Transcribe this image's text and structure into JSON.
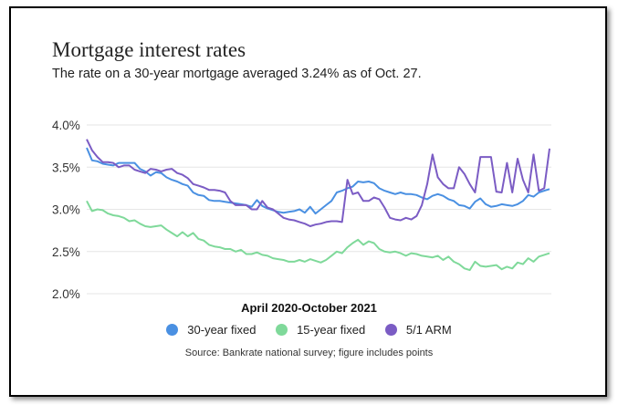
{
  "chart_data": {
    "type": "line",
    "title": "Mortgage interest rates",
    "subtitle": "The rate on a 30-year mortgage averaged 3.24% as of Oct. 27.",
    "xlabel": "April 2020-October 2021",
    "ylabel": "",
    "ylim": [
      2.0,
      4.0
    ],
    "yticks": [
      "4.0%",
      "3.5%",
      "3.0%",
      "2.5%",
      "2.0%"
    ],
    "ytick_values": [
      4.0,
      3.5,
      3.0,
      2.5,
      2.0
    ],
    "grid": true,
    "legend_position": "bottom",
    "source": "Source: Bankrate national survey; figure includes points",
    "series": [
      {
        "name": "30-year fixed",
        "color": "#4a90e2",
        "values": [
          3.73,
          3.58,
          3.57,
          3.54,
          3.53,
          3.52,
          3.55,
          3.55,
          3.55,
          3.55,
          3.48,
          3.45,
          3.4,
          3.44,
          3.43,
          3.38,
          3.35,
          3.33,
          3.3,
          3.28,
          3.2,
          3.17,
          3.16,
          3.11,
          3.1,
          3.1,
          3.09,
          3.08,
          3.07,
          3.06,
          3.05,
          3.03,
          3.11,
          3.04,
          3.01,
          2.99,
          2.97,
          2.96,
          2.97,
          2.98,
          3.0,
          2.96,
          3.03,
          2.95,
          3.0,
          3.05,
          3.1,
          3.2,
          3.22,
          3.25,
          3.27,
          3.33,
          3.32,
          3.33,
          3.31,
          3.25,
          3.22,
          3.2,
          3.18,
          3.2,
          3.18,
          3.18,
          3.17,
          3.14,
          3.12,
          3.16,
          3.18,
          3.16,
          3.12,
          3.1,
          3.05,
          3.04,
          3.01,
          3.09,
          3.13,
          3.06,
          3.03,
          3.04,
          3.06,
          3.05,
          3.04,
          3.06,
          3.1,
          3.17,
          3.15,
          3.2,
          3.22,
          3.24
        ]
      },
      {
        "name": "15-year fixed",
        "color": "#7fd99a",
        "values": [
          3.1,
          2.98,
          3.0,
          2.99,
          2.95,
          2.93,
          2.92,
          2.9,
          2.86,
          2.87,
          2.83,
          2.8,
          2.79,
          2.8,
          2.81,
          2.76,
          2.72,
          2.68,
          2.73,
          2.68,
          2.72,
          2.65,
          2.63,
          2.58,
          2.56,
          2.55,
          2.53,
          2.53,
          2.5,
          2.52,
          2.47,
          2.47,
          2.49,
          2.46,
          2.45,
          2.42,
          2.41,
          2.4,
          2.38,
          2.38,
          2.4,
          2.38,
          2.41,
          2.39,
          2.37,
          2.4,
          2.45,
          2.5,
          2.48,
          2.55,
          2.6,
          2.64,
          2.58,
          2.62,
          2.6,
          2.53,
          2.5,
          2.49,
          2.5,
          2.48,
          2.45,
          2.48,
          2.47,
          2.45,
          2.44,
          2.43,
          2.45,
          2.4,
          2.44,
          2.38,
          2.35,
          2.3,
          2.28,
          2.38,
          2.33,
          2.32,
          2.33,
          2.34,
          2.29,
          2.32,
          2.3,
          2.37,
          2.35,
          2.42,
          2.38,
          2.44,
          2.46,
          2.48
        ]
      },
      {
        "name": "5/1 ARM",
        "color": "#7b5cc4",
        "values": [
          3.83,
          3.7,
          3.62,
          3.56,
          3.56,
          3.55,
          3.5,
          3.52,
          3.52,
          3.47,
          3.45,
          3.43,
          3.48,
          3.47,
          3.45,
          3.47,
          3.48,
          3.43,
          3.41,
          3.37,
          3.3,
          3.28,
          3.26,
          3.23,
          3.23,
          3.22,
          3.2,
          3.1,
          3.05,
          3.05,
          3.05,
          3.0,
          3.0,
          3.1,
          3.02,
          3.0,
          2.95,
          2.9,
          2.88,
          2.87,
          2.85,
          2.83,
          2.8,
          2.82,
          2.83,
          2.85,
          2.86,
          2.86,
          2.85,
          3.35,
          3.18,
          3.2,
          3.1,
          3.1,
          3.14,
          3.12,
          3.02,
          2.9,
          2.88,
          2.87,
          2.9,
          2.88,
          2.92,
          3.05,
          3.3,
          3.65,
          3.38,
          3.3,
          3.25,
          3.25,
          3.5,
          3.42,
          3.3,
          3.2,
          3.62,
          3.62,
          3.62,
          3.21,
          3.2,
          3.55,
          3.2,
          3.6,
          3.35,
          3.2,
          3.65,
          3.22,
          3.25,
          3.72
        ]
      }
    ]
  }
}
